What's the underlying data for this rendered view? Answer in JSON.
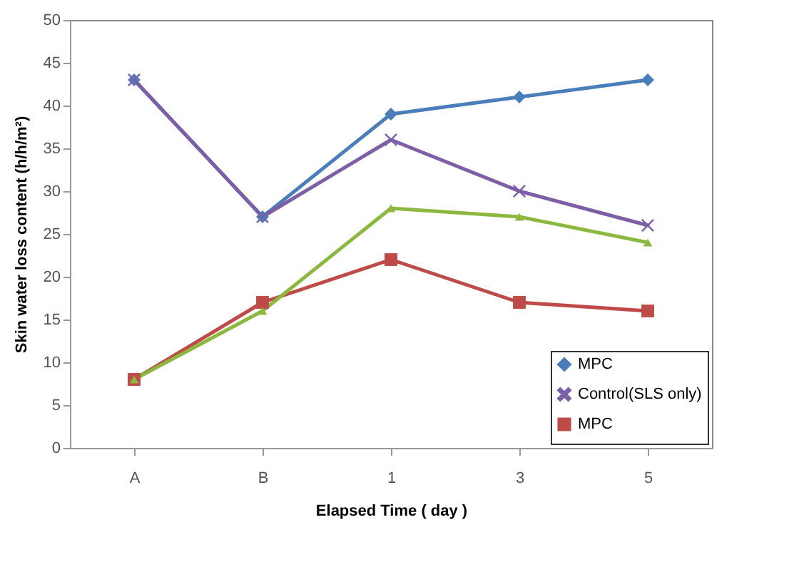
{
  "chart_data": {
    "type": "line",
    "xlabel": "Elapsed Time ( day )",
    "ylabel": "Skin water loss content (h/h/m²)",
    "categories": [
      "A",
      "B",
      "1",
      "3",
      "5"
    ],
    "series": [
      {
        "name": "MPC",
        "color": "#4a7ebb",
        "marker": "diamond",
        "values": [
          43,
          27,
          39,
          41,
          43
        ]
      },
      {
        "name": "Control(SLS only)",
        "color": "#7d5fa8",
        "marker": "cross",
        "values": [
          43,
          27,
          36,
          30,
          26
        ]
      },
      {
        "name": "MPC",
        "color": "#be4b48",
        "marker": "square",
        "values": [
          8,
          17,
          22,
          17,
          16
        ]
      },
      {
        "color": "#8cb83f",
        "marker": "triangle",
        "values": [
          8,
          16,
          28,
          27,
          24
        ]
      }
    ],
    "ylim": [
      0,
      50
    ],
    "yticks": [
      0,
      5,
      10,
      15,
      20,
      25,
      30,
      35,
      40,
      45,
      50
    ],
    "grid": false,
    "legend": "bottom right"
  }
}
